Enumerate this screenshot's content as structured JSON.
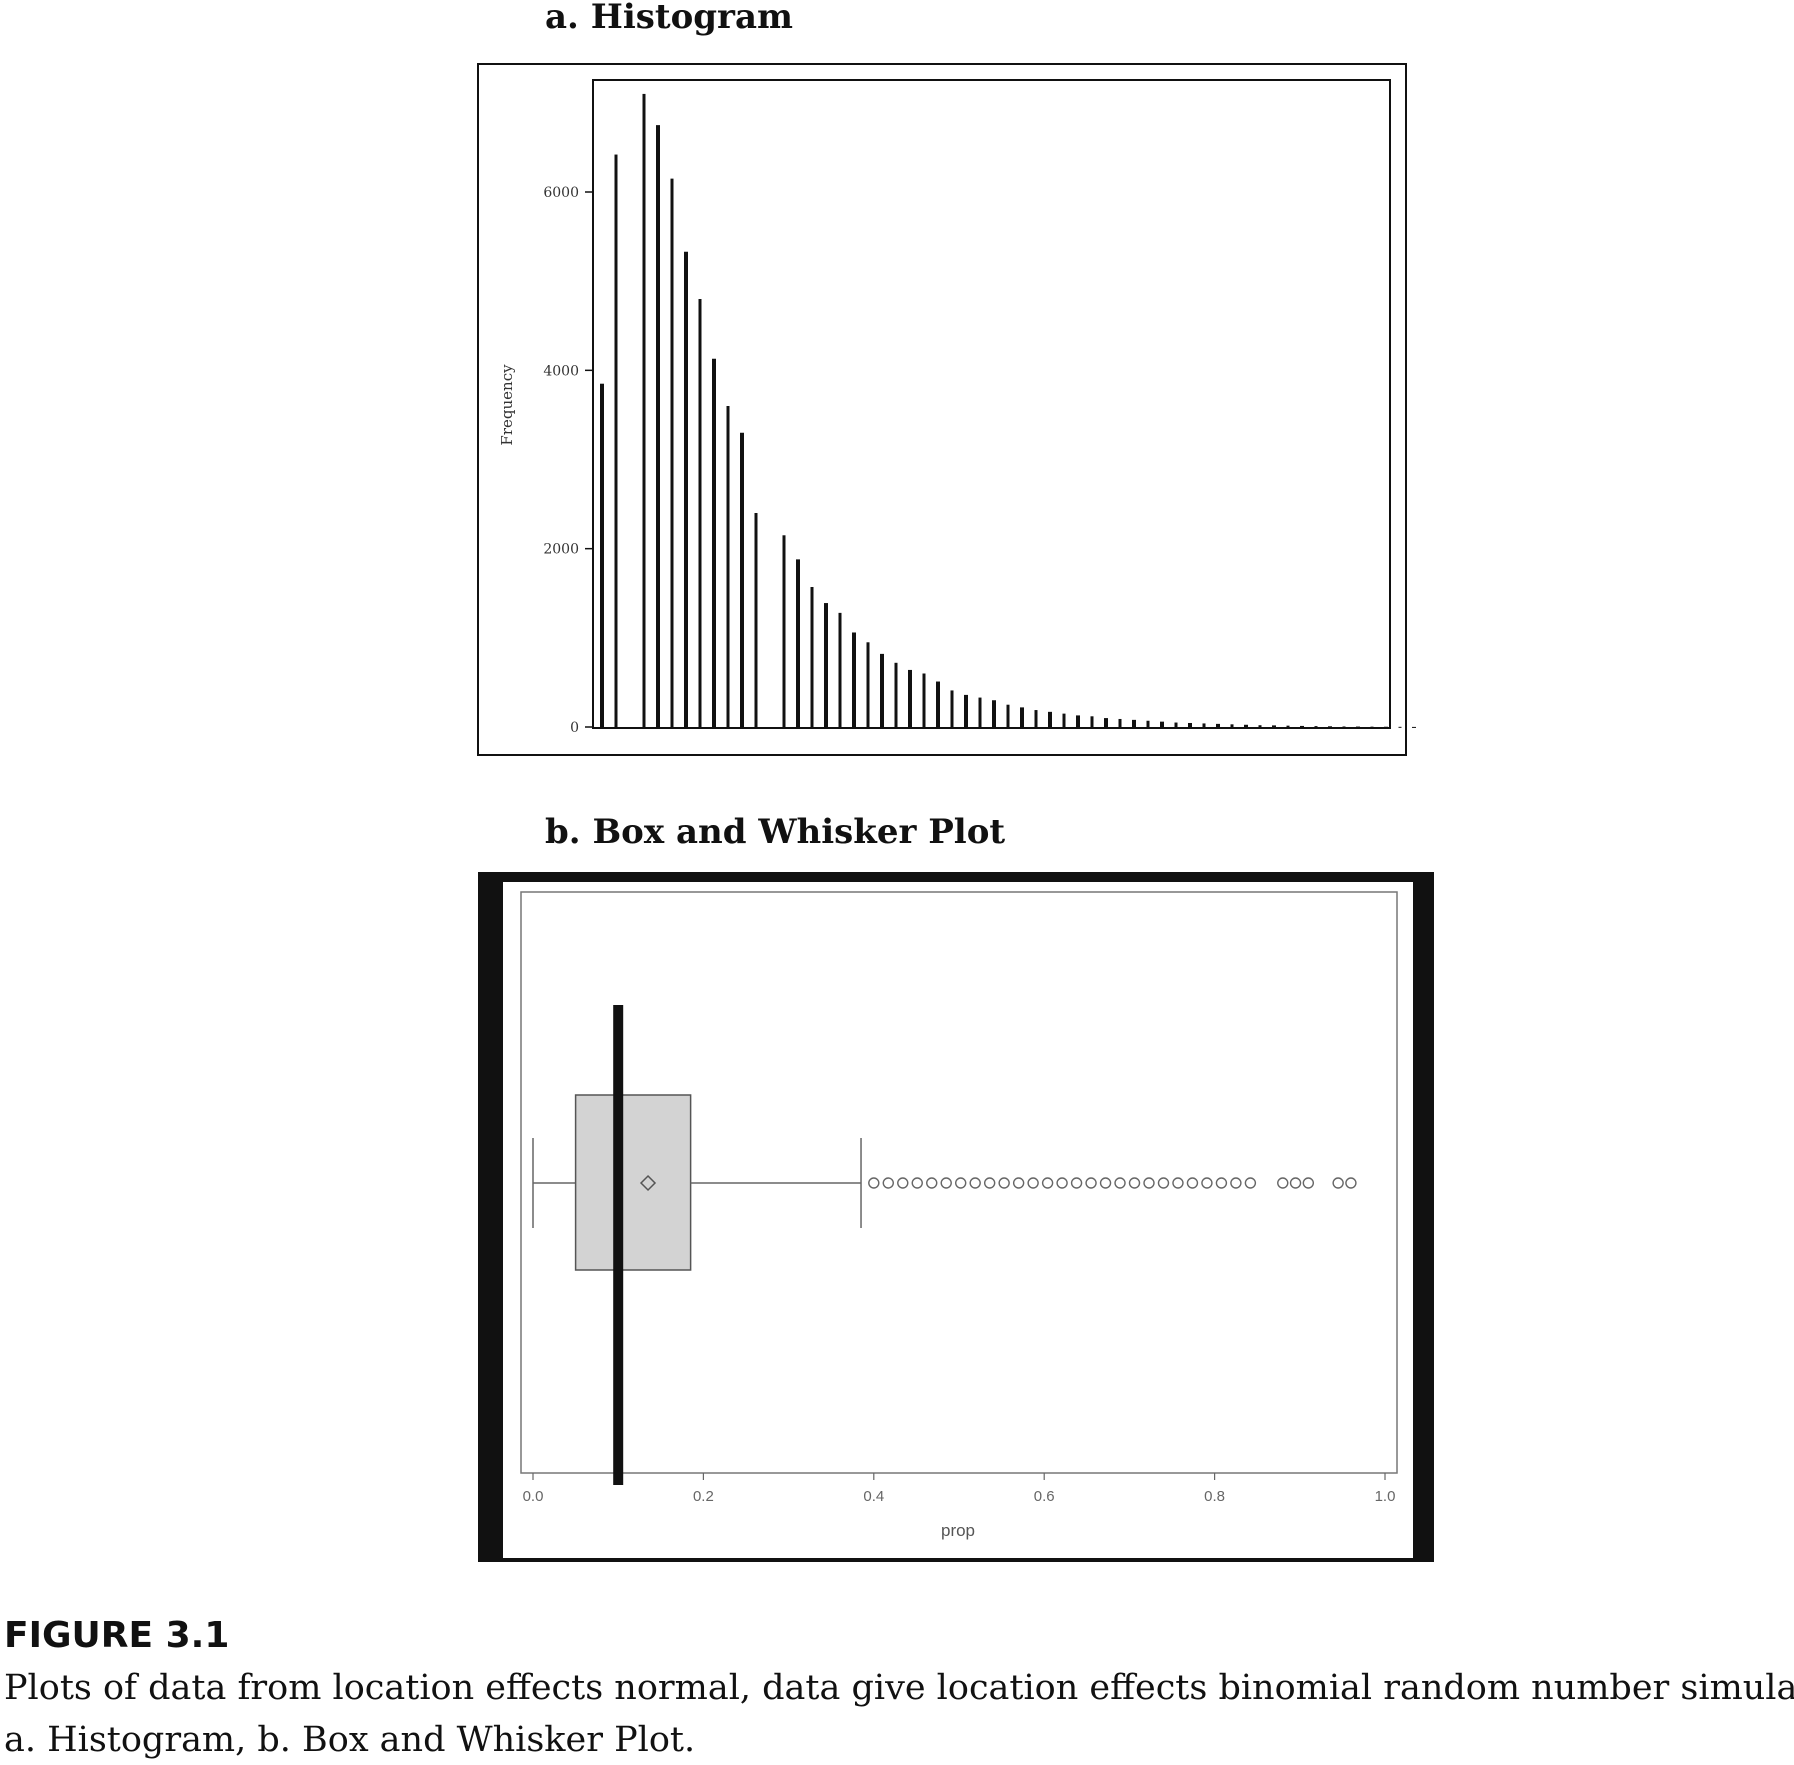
{
  "chart_data": [
    {
      "type": "bar",
      "title": "a. Histogram",
      "xlabel": "",
      "ylabel": "Frequency",
      "ylim": [
        0,
        7200
      ],
      "yticks": [
        "0",
        "2000",
        "4000",
        "6000"
      ],
      "series_x_index": [
        0,
        1,
        3,
        4,
        5,
        6,
        7,
        8,
        9,
        10,
        11,
        13,
        14,
        15,
        16,
        17,
        18,
        19,
        20,
        21,
        22,
        23,
        24,
        25,
        26,
        27,
        28,
        29,
        30,
        31,
        32,
        33,
        34,
        35,
        36,
        37,
        38,
        39,
        40,
        41,
        42,
        43,
        44,
        45,
        46,
        47,
        48,
        49,
        50,
        51,
        52,
        53,
        54,
        55,
        56,
        57,
        58
      ],
      "values": [
        3850,
        6420,
        7100,
        6750,
        6150,
        5330,
        4800,
        4130,
        3600,
        3300,
        2400,
        2150,
        1880,
        1570,
        1390,
        1280,
        1060,
        950,
        820,
        720,
        640,
        600,
        510,
        410,
        360,
        330,
        300,
        250,
        220,
        190,
        170,
        150,
        130,
        120,
        100,
        90,
        80,
        70,
        60,
        50,
        45,
        40,
        35,
        30,
        25,
        20,
        18,
        15,
        12,
        10,
        8,
        6,
        5,
        4,
        3,
        2,
        1
      ]
    },
    {
      "type": "boxplot",
      "title": "b. Box and Whisker Plot",
      "xlabel": "prop",
      "xlim": [
        0.0,
        1.0
      ],
      "xticks": [
        "0.0",
        "0.2",
        "0.4",
        "0.6",
        "0.8",
        "1.0"
      ],
      "whisker_low": 0.0,
      "q1": 0.05,
      "median": 0.1,
      "q3": 0.185,
      "mean": 0.135,
      "whisker_high": 0.385,
      "outliers": [
        0.4,
        0.417,
        0.434,
        0.451,
        0.468,
        0.485,
        0.502,
        0.519,
        0.536,
        0.553,
        0.57,
        0.587,
        0.604,
        0.621,
        0.638,
        0.655,
        0.672,
        0.689,
        0.706,
        0.723,
        0.74,
        0.757,
        0.774,
        0.791,
        0.808,
        0.825,
        0.842,
        0.88,
        0.895,
        0.91,
        0.945,
        0.96
      ]
    }
  ],
  "caption": {
    "label": "FIGURE 3.1",
    "line1": "Plots of data from location effects normal, data give location effects binomial random number simulation.",
    "line2": "a. Histogram, b. Box and Whisker Plot."
  }
}
